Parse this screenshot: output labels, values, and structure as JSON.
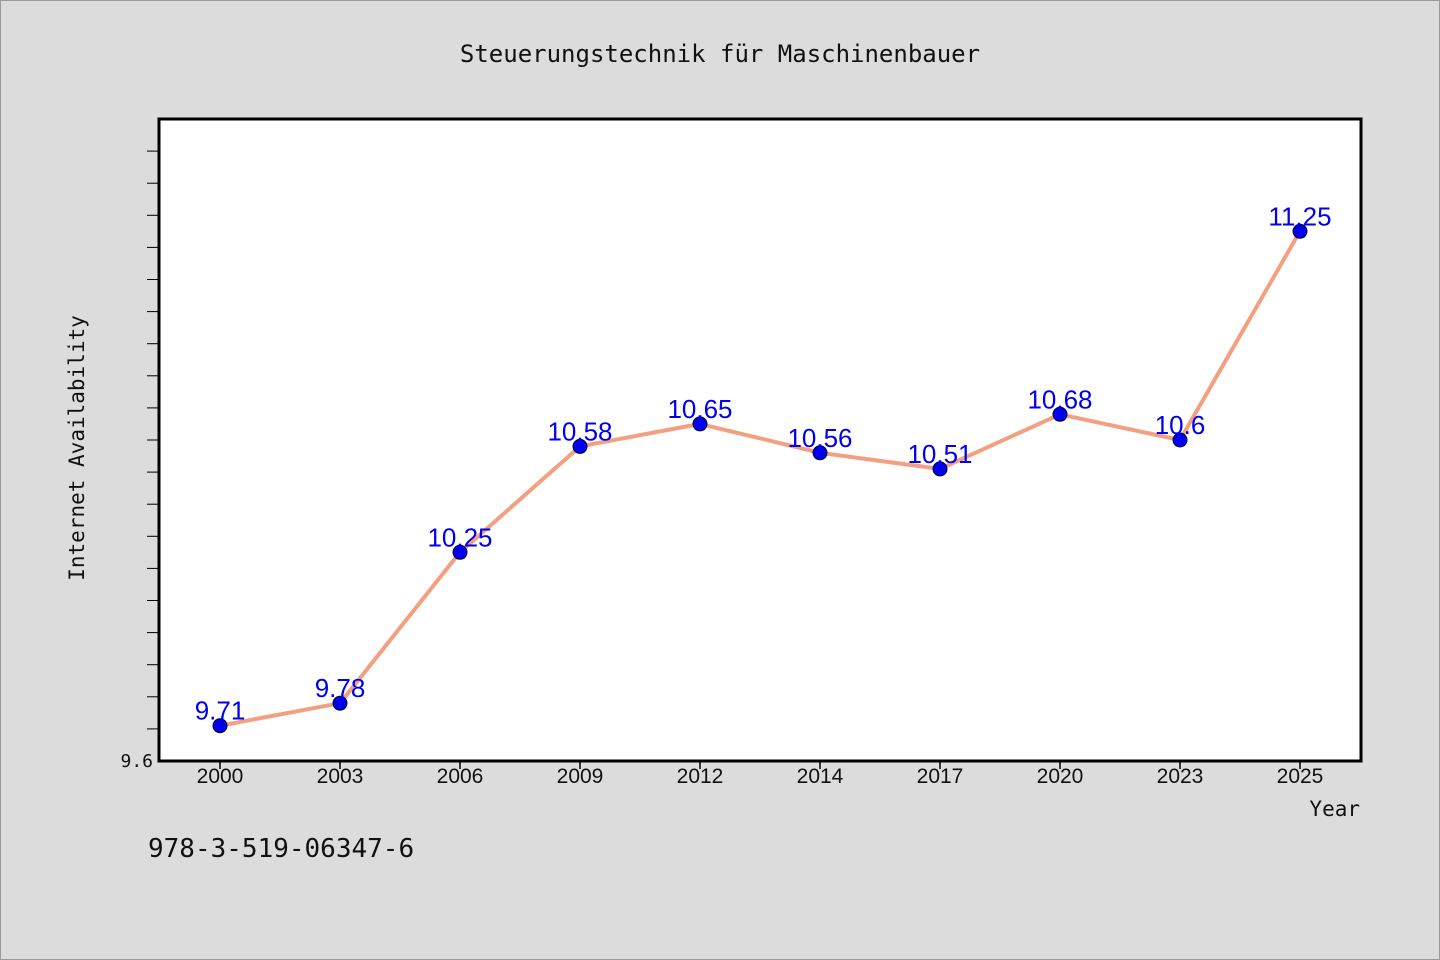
{
  "colors": {
    "background": "#dcdcdc",
    "plot_background": "#ffffff",
    "line": "#f4a080",
    "marker": "#0000ee",
    "data_label": "#0000ee",
    "axis": "#000000",
    "text": "#111111"
  },
  "isbn": "978-3-519-06347-6",
  "chart_data": {
    "type": "line",
    "title": "Steuerungstechnik für Maschinenbauer",
    "xlabel": "Year",
    "ylabel": "Internet Availability",
    "categories": [
      "2000",
      "2003",
      "2006",
      "2009",
      "2012",
      "2014",
      "2017",
      "2020",
      "2023",
      "2025"
    ],
    "series": [
      {
        "values": [
          9.71,
          9.78,
          10.25,
          10.58,
          10.65,
          10.56,
          10.51,
          10.68,
          10.6,
          11.25
        ],
        "data_labels": [
          "9.71",
          "9.78",
          "10.25",
          "10.58",
          "10.65",
          "10.56",
          "10.51",
          "10.68",
          "10.6",
          "11.25"
        ]
      }
    ],
    "ylim": [
      9.6,
      11.6
    ],
    "yticks_labeled": [
      "9.6"
    ],
    "grid": false,
    "legend": "none"
  }
}
